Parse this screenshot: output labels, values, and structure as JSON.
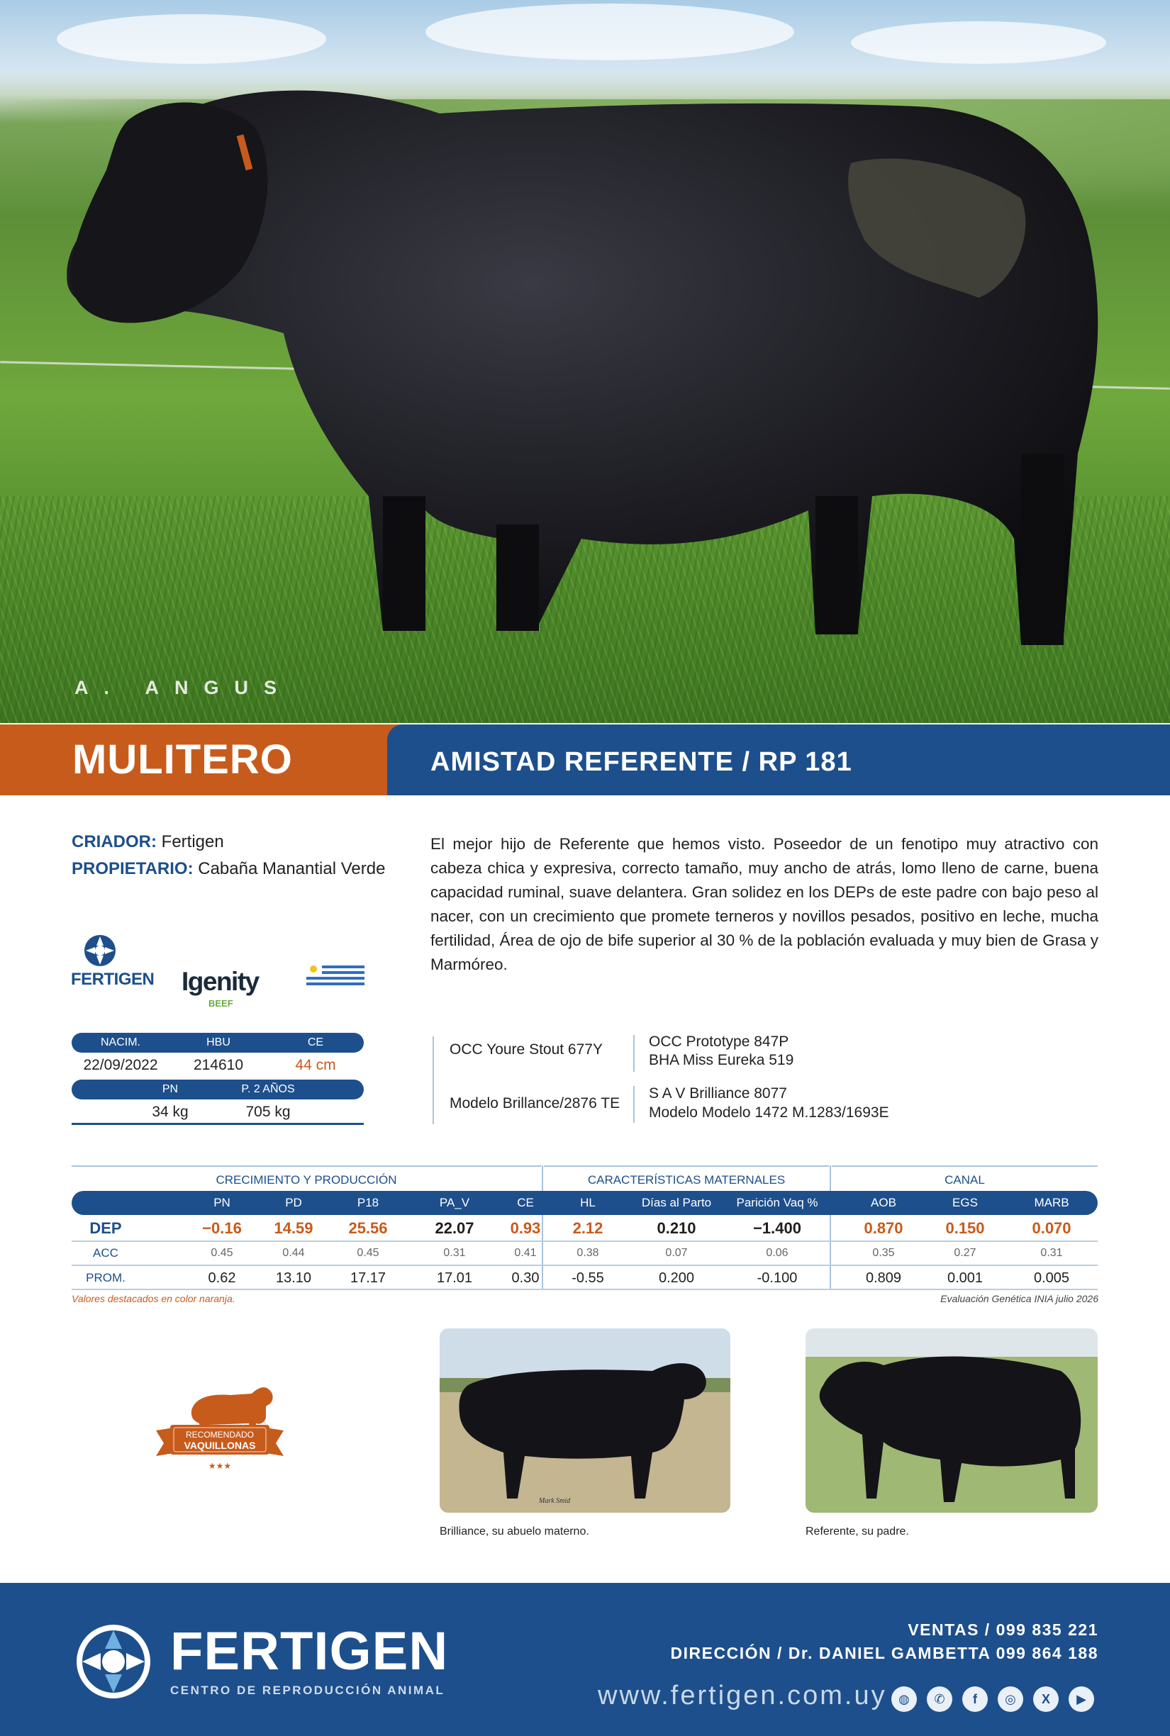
{
  "hero": {
    "breed_label": "A. ANGUS"
  },
  "title_bar": {
    "name": "MULITERO",
    "pedigree": "AMISTAD REFERENTE / RP 181"
  },
  "info": {
    "breeder_label": "CRIADOR:",
    "breeder_value": "Fertigen",
    "owner_label": "PROPIETARIO:",
    "owner_value": "Cabaña Manantial Verde"
  },
  "description": "El mejor hijo de Referente que hemos visto. Poseedor de un fenotipo muy atractivo con cabeza chica y expresiva, correcto tamaño, muy ancho de atrás, lomo lleno de carne, buena capacidad ruminal, suave delantera. Gran  solidez en los DEPs de este padre con bajo peso al nacer, con un crecimiento que promete terneros y novillos pesados, positivo en leche, mucha fertilidad, Área de ojo de bife superior al 30 % de la población evaluada y muy bien de Grasa y Marmóreo.",
  "logos": {
    "fertigen": "FERTIGEN",
    "igenity": "Igenity",
    "igenity_sub": "BEEF"
  },
  "birth_data": {
    "headers1": [
      "NACIM.",
      "HBU",
      "CE"
    ],
    "values1": [
      "22/09/2022",
      "214610",
      "44 cm"
    ],
    "headers2": [
      "PN",
      "P. 2 AÑOS"
    ],
    "values2": [
      "34 kg",
      "705 kg"
    ]
  },
  "pedigree": {
    "sire": "OCC Youre Stout 677Y",
    "sire_sire": "OCC Prototype 847P",
    "sire_dam": "BHA Miss Eureka 519",
    "dam": "Modelo Brillance/2876 TE",
    "dam_sire": "S A V Brilliance 8077",
    "dam_dam": "Modelo Modelo 1472 M.1283/1693E"
  },
  "epd_table": {
    "groups": [
      "CRECIMIENTO Y PRODUCCIÓN",
      "CARACTERÍSTICAS MATERNALES",
      "CANAL"
    ],
    "columns": [
      "PN",
      "PD",
      "P18",
      "PA_V",
      "CE",
      "HL",
      "Días al Parto",
      "Parición Vaq %",
      "AOB",
      "EGS",
      "MARB"
    ],
    "rows": [
      {
        "label": "DEP",
        "values": [
          "−0.16",
          "14.59",
          "25.56",
          "22.07",
          "0.93",
          "2.12",
          "0.210",
          "−1.400",
          "0.870",
          "0.150",
          "0.070"
        ],
        "highlight": [
          true,
          true,
          true,
          false,
          true,
          true,
          false,
          false,
          true,
          true,
          true
        ]
      },
      {
        "label": "ACC",
        "values": [
          "0.45",
          "0.44",
          "0.45",
          "0.31",
          "0.41",
          "0.38",
          "0.07",
          "0.06",
          "0.35",
          "0.27",
          "0.31"
        ]
      },
      {
        "label": "PROM.",
        "values": [
          "0.62",
          "13.10",
          "17.17",
          "17.01",
          "0.30",
          "-0.55",
          "0.200",
          "-0.100",
          "0.809",
          "0.001",
          "0.005"
        ]
      }
    ],
    "note_left": "Valores destacados en color naranja.",
    "note_right": "Evaluación Genética INIA julio 2026"
  },
  "badge": {
    "line1": "RECOMENDADO",
    "line2": "VAQUILLONAS",
    "stars": "★★★"
  },
  "photos": {
    "left_caption": "Brilliance, su abuelo materno.",
    "right_caption": "Referente, su padre.",
    "left_signature": "Mark Smid"
  },
  "footer": {
    "brand": "FERTIGEN",
    "tagline": "CENTRO DE REPRODUCCIÓN ANIMAL",
    "sales": "VENTAS / 099 835 221",
    "direction": "DIRECCIÓN / Dr. DANIEL GAMBETTA 099 864 188",
    "website": "www.fertigen.com.uy",
    "social_icons": [
      "globe-icon",
      "whatsapp-icon",
      "facebook-icon",
      "instagram-icon",
      "x-icon",
      "youtube-icon"
    ]
  },
  "colors": {
    "brand_blue": "#1d4f8c",
    "accent_orange": "#c75b1c"
  }
}
